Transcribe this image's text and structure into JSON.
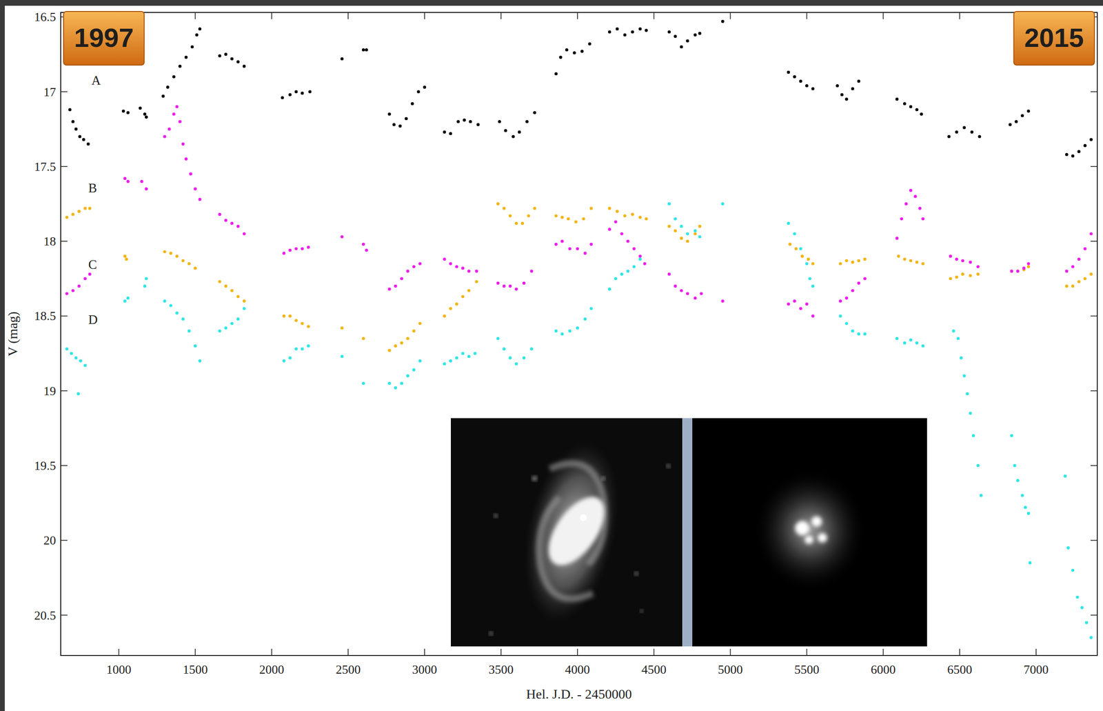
{
  "chart_data": {
    "type": "scatter",
    "xlabel": "Hel. J.D. - 2450000",
    "ylabel": "V (mag)",
    "xlim": [
      620,
      7400
    ],
    "ylim": [
      20.77,
      16.47
    ],
    "xticks": [
      1000,
      1500,
      2000,
      2500,
      3000,
      3500,
      4000,
      4500,
      5000,
      5500,
      6000,
      6500,
      7000
    ],
    "yticks": [
      16.5,
      17,
      17.5,
      18,
      18.5,
      19,
      19.5,
      20,
      20.5
    ],
    "grid": false,
    "annotations": [
      "1997",
      "2015"
    ],
    "series": [
      {
        "name": "A",
        "color": "#000000",
        "marker": "circle",
        "x": [
          680,
          700,
          720,
          745,
          770,
          800,
          1030,
          1060,
          1140,
          1170,
          1180,
          1290,
          1320,
          1360,
          1400,
          1440,
          1480,
          1510,
          1530,
          1660,
          1700,
          1740,
          1780,
          1820,
          2070,
          2120,
          2160,
          2200,
          2250,
          2460,
          2600,
          2620,
          2770,
          2800,
          2840,
          2880,
          2920,
          2960,
          3000,
          3130,
          3170,
          3220,
          3260,
          3300,
          3350,
          3490,
          3530,
          3580,
          3620,
          3670,
          3720,
          3860,
          3890,
          3930,
          3980,
          4030,
          4080,
          4210,
          4260,
          4310,
          4360,
          4410,
          4450,
          4600,
          4640,
          4680,
          4720,
          4770,
          4800,
          4950,
          5380,
          5420,
          5460,
          5500,
          5540,
          5700,
          5730,
          5760,
          5800,
          5840,
          6090,
          6140,
          6180,
          6220,
          6250,
          6430,
          6480,
          6530,
          6580,
          6630,
          6830,
          6870,
          6910,
          6950,
          7200,
          7240,
          7280,
          7320,
          7360
        ],
        "values": [
          17.12,
          17.2,
          17.25,
          17.3,
          17.32,
          17.35,
          17.13,
          17.14,
          17.11,
          17.15,
          17.17,
          17.03,
          16.97,
          16.9,
          16.83,
          16.77,
          16.7,
          16.62,
          16.58,
          16.76,
          16.75,
          16.78,
          16.8,
          16.83,
          17.04,
          17.02,
          17.0,
          17.01,
          17.0,
          16.78,
          16.72,
          16.72,
          17.15,
          17.22,
          17.23,
          17.18,
          17.08,
          17.0,
          16.97,
          17.27,
          17.28,
          17.2,
          17.19,
          17.2,
          17.22,
          17.2,
          17.26,
          17.3,
          17.27,
          17.2,
          17.14,
          16.88,
          16.77,
          16.72,
          16.74,
          16.73,
          16.68,
          16.6,
          16.58,
          16.62,
          16.6,
          16.58,
          16.59,
          16.6,
          16.63,
          16.7,
          16.66,
          16.62,
          16.61,
          16.53,
          16.87,
          16.9,
          16.93,
          16.96,
          16.98,
          16.96,
          17.02,
          17.05,
          16.98,
          16.93,
          17.05,
          17.08,
          17.1,
          17.12,
          17.15,
          17.3,
          17.27,
          17.24,
          17.27,
          17.3,
          17.22,
          17.2,
          17.16,
          17.13,
          17.42,
          17.43,
          17.4,
          17.36,
          17.32
        ]
      },
      {
        "name": "B",
        "color": "#f2b411",
        "marker": "circle",
        "x": [
          660,
          700,
          740,
          780,
          810,
          1040,
          1050,
          1300,
          1340,
          1380,
          1420,
          1460,
          1500,
          1660,
          1700,
          1740,
          1780,
          1820,
          2080,
          2120,
          2160,
          2200,
          2240,
          2460,
          2600,
          2770,
          2810,
          2850,
          2890,
          2930,
          2970,
          3130,
          3170,
          3210,
          3250,
          3290,
          3340,
          3480,
          3520,
          3560,
          3600,
          3640,
          3680,
          3720,
          3860,
          3900,
          3940,
          3990,
          4040,
          4090,
          4210,
          4260,
          4310,
          4360,
          4410,
          4450,
          4600,
          4640,
          4680,
          4720,
          4770,
          4800,
          5390,
          5430,
          5470,
          5510,
          5540,
          5720,
          5760,
          5800,
          5840,
          5880,
          6100,
          6140,
          6180,
          6220,
          6260,
          6440,
          6480,
          6520,
          6570,
          6620,
          6840,
          6880,
          6920,
          6950,
          7200,
          7240,
          7280,
          7320,
          7360
        ],
        "values": [
          17.84,
          17.82,
          17.8,
          17.78,
          17.78,
          18.1,
          18.12,
          18.07,
          18.08,
          18.1,
          18.13,
          18.15,
          18.18,
          18.27,
          18.3,
          18.33,
          18.37,
          18.4,
          18.5,
          18.5,
          18.53,
          18.55,
          18.57,
          18.58,
          18.65,
          18.73,
          18.7,
          18.68,
          18.65,
          18.6,
          18.55,
          18.5,
          18.45,
          18.42,
          18.37,
          18.33,
          18.27,
          17.75,
          17.78,
          17.83,
          17.88,
          17.88,
          17.83,
          17.78,
          17.83,
          17.84,
          17.85,
          17.87,
          17.85,
          17.78,
          17.78,
          17.8,
          17.83,
          17.82,
          17.84,
          17.85,
          17.9,
          17.93,
          17.98,
          18.0,
          17.95,
          17.9,
          18.02,
          18.05,
          18.1,
          18.12,
          18.15,
          18.15,
          18.13,
          18.14,
          18.13,
          18.12,
          18.1,
          18.12,
          18.13,
          18.14,
          18.15,
          18.25,
          18.24,
          18.22,
          18.23,
          18.22,
          18.2,
          18.2,
          18.19,
          18.17,
          18.3,
          18.3,
          18.27,
          18.25,
          18.22
        ]
      },
      {
        "name": "C",
        "color": "#ee1cee",
        "marker": "circle",
        "x": [
          660,
          700,
          740,
          780,
          810,
          1040,
          1060,
          1150,
          1180,
          1300,
          1330,
          1360,
          1380,
          1400,
          1420,
          1440,
          1470,
          1500,
          1530,
          1660,
          1700,
          1740,
          1780,
          1820,
          2080,
          2120,
          2160,
          2200,
          2240,
          2460,
          2600,
          2620,
          2770,
          2810,
          2850,
          2890,
          2930,
          2970,
          3130,
          3170,
          3210,
          3250,
          3290,
          3340,
          3480,
          3520,
          3560,
          3600,
          3650,
          3700,
          3860,
          3900,
          3950,
          4000,
          4050,
          4090,
          4210,
          4250,
          4290,
          4330,
          4370,
          4410,
          4440,
          4600,
          4640,
          4680,
          4720,
          4770,
          4810,
          4950,
          5380,
          5420,
          5460,
          5500,
          5540,
          5720,
          5760,
          5800,
          5840,
          5880,
          6090,
          6120,
          6150,
          6180,
          6210,
          6240,
          6260,
          6440,
          6480,
          6520,
          6570,
          6620,
          6840,
          6880,
          6920,
          6950,
          7200,
          7240,
          7280,
          7320,
          7360
        ],
        "values": [
          18.35,
          18.33,
          18.3,
          18.25,
          18.22,
          17.58,
          17.6,
          17.6,
          17.65,
          17.3,
          17.25,
          17.15,
          17.1,
          17.2,
          17.35,
          17.45,
          17.55,
          17.65,
          17.72,
          17.82,
          17.86,
          17.88,
          17.9,
          17.95,
          18.08,
          18.06,
          18.05,
          18.05,
          18.04,
          17.97,
          18.02,
          18.06,
          18.32,
          18.3,
          18.25,
          18.2,
          18.17,
          18.15,
          18.12,
          18.15,
          18.17,
          18.18,
          18.2,
          18.2,
          18.28,
          18.3,
          18.3,
          18.32,
          18.28,
          18.2,
          18.02,
          18.0,
          18.05,
          18.05,
          18.08,
          18.02,
          17.92,
          17.87,
          17.95,
          18.0,
          18.05,
          18.1,
          18.15,
          18.22,
          18.3,
          18.33,
          18.35,
          18.38,
          18.35,
          18.4,
          18.42,
          18.4,
          18.45,
          18.42,
          18.5,
          18.4,
          18.38,
          18.33,
          18.28,
          18.25,
          17.98,
          17.85,
          17.75,
          17.66,
          17.7,
          17.78,
          17.85,
          18.1,
          18.12,
          18.13,
          18.14,
          18.17,
          18.2,
          18.2,
          18.18,
          18.15,
          18.2,
          18.17,
          18.12,
          18.05,
          17.95
        ]
      },
      {
        "name": "D",
        "color": "#2ee6e6",
        "marker": "circle",
        "x": [
          660,
          690,
          720,
          735,
          750,
          780,
          1040,
          1060,
          1170,
          1180,
          1300,
          1340,
          1380,
          1420,
          1460,
          1500,
          1530,
          1660,
          1700,
          1740,
          1780,
          1820,
          2080,
          2120,
          2160,
          2200,
          2240,
          2460,
          2600,
          2770,
          2810,
          2850,
          2890,
          2930,
          2970,
          3130,
          3170,
          3210,
          3250,
          3290,
          3330,
          3480,
          3520,
          3560,
          3600,
          3650,
          3700,
          3860,
          3900,
          3950,
          4000,
          4050,
          4090,
          4210,
          4250,
          4290,
          4330,
          4370,
          4410,
          4600,
          4640,
          4680,
          4720,
          4770,
          4800,
          4950,
          5380,
          5420,
          5460,
          5500,
          5520,
          5540,
          5720,
          5760,
          5800,
          5840,
          5880,
          6090,
          6140,
          6180,
          6220,
          6260,
          6460,
          6490,
          6510,
          6530,
          6550,
          6570,
          6590,
          6620,
          6640,
          6840,
          6860,
          6880,
          6910,
          6930,
          6950,
          6960,
          7190,
          7210,
          7240,
          7270,
          7300,
          7330,
          7360
        ],
        "values": [
          18.72,
          18.75,
          18.78,
          19.02,
          18.8,
          18.83,
          18.4,
          18.38,
          18.3,
          18.25,
          18.4,
          18.43,
          18.48,
          18.52,
          18.6,
          18.7,
          18.8,
          18.6,
          18.58,
          18.55,
          18.52,
          18.45,
          18.8,
          18.78,
          18.72,
          18.72,
          18.7,
          18.77,
          18.95,
          18.95,
          18.98,
          18.95,
          18.9,
          18.86,
          18.8,
          18.82,
          18.8,
          18.78,
          18.75,
          18.77,
          18.75,
          18.65,
          18.72,
          18.78,
          18.82,
          18.78,
          18.72,
          18.6,
          18.62,
          18.6,
          18.58,
          18.52,
          18.45,
          18.32,
          18.25,
          18.22,
          18.2,
          18.17,
          18.12,
          17.75,
          17.85,
          17.9,
          17.95,
          17.93,
          17.97,
          17.75,
          17.88,
          17.95,
          18.05,
          18.15,
          18.25,
          18.3,
          18.5,
          18.55,
          18.6,
          18.62,
          18.62,
          18.65,
          18.68,
          18.66,
          18.68,
          18.7,
          18.6,
          18.65,
          18.78,
          18.9,
          19.02,
          19.15,
          19.3,
          19.5,
          19.7,
          19.3,
          19.5,
          19.6,
          19.7,
          19.78,
          19.82,
          20.15,
          19.57,
          20.05,
          20.2,
          20.38,
          20.45,
          20.55,
          20.65
        ]
      }
    ]
  }
}
